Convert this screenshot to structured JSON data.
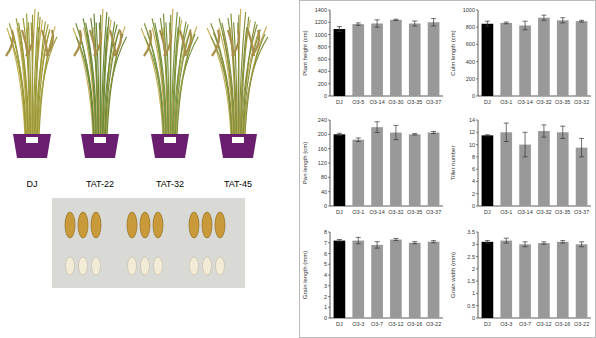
{
  "photos": {
    "plant_labels": [
      "DJ",
      "TAT-22",
      "TAT-32",
      "TAT-45"
    ]
  },
  "chart_data": [
    {
      "type": "bar",
      "ylabel": "Plant height (cm)",
      "categories": [
        "DJ",
        "O3-5",
        "O3-14",
        "O3-30",
        "O3-35",
        "O3-37"
      ],
      "values": [
        1090,
        1170,
        1180,
        1240,
        1180,
        1200
      ],
      "errors": [
        40,
        20,
        60,
        10,
        40,
        60
      ],
      "colors": [
        "#000000",
        "#999999",
        "#999999",
        "#999999",
        "#999999",
        "#999999"
      ],
      "ylim": [
        0,
        1400
      ],
      "yticks": [
        0,
        200,
        400,
        600,
        800,
        1000,
        1200,
        1400
      ],
      "grid": false
    },
    {
      "type": "bar",
      "ylabel": "Culm length (cm)",
      "categories": [
        "DJ",
        "O3-1",
        "O3-14",
        "O3-32",
        "O3-35",
        "O3-32"
      ],
      "values": [
        840,
        850,
        820,
        910,
        880,
        870
      ],
      "errors": [
        30,
        10,
        50,
        30,
        30,
        10
      ],
      "colors": [
        "#000000",
        "#999999",
        "#999999",
        "#999999",
        "#999999",
        "#999999"
      ],
      "ylim": [
        0,
        1000
      ],
      "yticks": [
        0,
        200,
        400,
        600,
        800,
        1000
      ],
      "grid": false
    },
    {
      "type": "bar",
      "ylabel": "Pan length (cm)",
      "categories": [
        "DJ",
        "O3-1",
        "O3-14",
        "O3-32",
        "O3-35",
        "O3-37"
      ],
      "values": [
        200,
        185,
        220,
        205,
        200,
        205
      ],
      "errors": [
        3,
        5,
        15,
        20,
        2,
        3
      ],
      "colors": [
        "#000000",
        "#999999",
        "#999999",
        "#999999",
        "#999999",
        "#999999"
      ],
      "ylim": [
        0,
        240
      ],
      "yticks": [
        0,
        40,
        80,
        120,
        160,
        200,
        240
      ],
      "grid": false
    },
    {
      "type": "bar",
      "ylabel": "Tiller number",
      "categories": [
        "DJ",
        "O3-1",
        "O3-14",
        "O3-32",
        "O3-35",
        "O3-37"
      ],
      "values": [
        11.5,
        12,
        10,
        12.2,
        12,
        9.5
      ],
      "errors": [
        0.1,
        1.5,
        2,
        1,
        1,
        1.5
      ],
      "colors": [
        "#000000",
        "#999999",
        "#999999",
        "#999999",
        "#999999",
        "#999999"
      ],
      "ylim": [
        0,
        14
      ],
      "yticks": [
        0,
        2,
        4,
        6,
        8,
        10,
        12,
        14
      ],
      "grid": false
    },
    {
      "type": "bar",
      "ylabel": "Grain length (mm)",
      "categories": [
        "DJ",
        "O3-3",
        "O3-7",
        "O3-12",
        "O3-16",
        "O3-22"
      ],
      "values": [
        7.2,
        7.2,
        6.8,
        7.3,
        7.0,
        7.1
      ],
      "errors": [
        0.1,
        0.3,
        0.3,
        0.1,
        0.1,
        0.1
      ],
      "colors": [
        "#000000",
        "#999999",
        "#999999",
        "#999999",
        "#999999",
        "#999999"
      ],
      "ylim": [
        0,
        8
      ],
      "yticks": [
        0,
        1,
        2,
        3,
        4,
        5,
        6,
        7,
        8
      ],
      "grid": false
    },
    {
      "type": "bar",
      "ylabel": "Grain width (mm)",
      "categories": [
        "DJ",
        "O3-3",
        "O3-7",
        "O3-12",
        "O3-16",
        "O3-22"
      ],
      "values": [
        3.1,
        3.15,
        3.0,
        3.05,
        3.1,
        3.0
      ],
      "errors": [
        0.05,
        0.1,
        0.1,
        0.05,
        0.05,
        0.1
      ],
      "colors": [
        "#000000",
        "#999999",
        "#999999",
        "#999999",
        "#999999",
        "#999999"
      ],
      "ylim": [
        0,
        3.5
      ],
      "yticks": [
        0,
        0.5,
        1,
        1.5,
        2,
        2.5,
        3,
        3.5
      ],
      "grid": false
    }
  ]
}
